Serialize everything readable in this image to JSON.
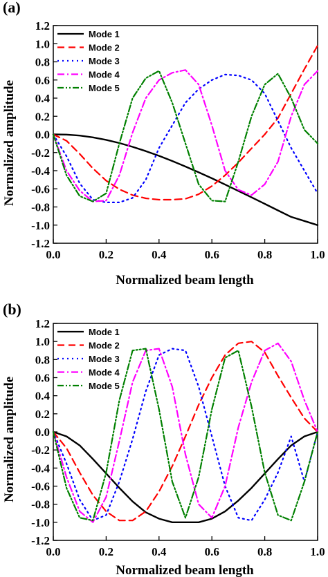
{
  "chart_data": [
    {
      "type": "line",
      "panel_label": "(a)",
      "xlabel": "Normalized beam length",
      "ylabel": "Normalized amplitude",
      "xlim": [
        0.0,
        1.0
      ],
      "ylim": [
        -1.2,
        1.2
      ],
      "x_ticks": [
        "0.0",
        "0.2",
        "0.4",
        "0.6",
        "0.8",
        "1.0"
      ],
      "y_ticks": [
        "-1.2",
        "-1.0",
        "-0.8",
        "-0.6",
        "-0.4",
        "-0.2",
        "0.0",
        "0.2",
        "0.4",
        "0.6",
        "0.8",
        "1.0",
        "1.2"
      ],
      "legend_position": "top-left",
      "grid": false,
      "x": [
        0.0,
        0.05,
        0.1,
        0.15,
        0.2,
        0.25,
        0.3,
        0.35,
        0.4,
        0.45,
        0.5,
        0.55,
        0.6,
        0.65,
        0.7,
        0.75,
        0.8,
        0.85,
        0.9,
        0.95,
        1.0
      ],
      "series": [
        {
          "name": "Mode 1",
          "color": "#000000",
          "dash": "solid",
          "values": [
            0.0,
            -0.002,
            -0.013,
            -0.033,
            -0.06,
            -0.095,
            -0.137,
            -0.184,
            -0.236,
            -0.293,
            -0.354,
            -0.418,
            -0.484,
            -0.553,
            -0.623,
            -0.694,
            -0.766,
            -0.838,
            -0.91,
            -0.955,
            -1.0
          ]
        },
        {
          "name": "Mode 2",
          "color": "#ff0000",
          "dash": "dashed",
          "values": [
            0.0,
            -0.07,
            -0.215,
            -0.375,
            -0.51,
            -0.605,
            -0.67,
            -0.705,
            -0.72,
            -0.72,
            -0.71,
            -0.66,
            -0.57,
            -0.45,
            -0.31,
            -0.155,
            0.0,
            0.18,
            0.45,
            0.72,
            0.98
          ]
        },
        {
          "name": "Mode 3",
          "color": "#0000ff",
          "dash": "dotted",
          "values": [
            0.0,
            -0.24,
            -0.54,
            -0.72,
            -0.75,
            -0.75,
            -0.7,
            -0.5,
            -0.15,
            0.1,
            0.35,
            0.5,
            0.6,
            0.66,
            0.65,
            0.6,
            0.45,
            0.15,
            -0.15,
            -0.4,
            -0.65
          ]
        },
        {
          "name": "Mode 4",
          "color": "#ff00ff",
          "dash": "dashdot",
          "values": [
            0.0,
            -0.4,
            -0.62,
            -0.74,
            -0.73,
            -0.45,
            0.02,
            0.4,
            0.6,
            0.68,
            0.71,
            0.55,
            0.1,
            -0.4,
            -0.61,
            -0.67,
            -0.55,
            -0.3,
            0.2,
            0.55,
            0.7
          ]
        },
        {
          "name": "Mode 5",
          "color": "#008000",
          "dash": "dashdotdot",
          "values": [
            0.0,
            -0.45,
            -0.68,
            -0.74,
            -0.65,
            -0.1,
            0.4,
            0.62,
            0.7,
            0.35,
            -0.1,
            -0.55,
            -0.73,
            -0.74,
            -0.3,
            0.2,
            0.55,
            0.67,
            0.4,
            0.05,
            -0.1
          ]
        }
      ]
    },
    {
      "type": "line",
      "panel_label": "(b)",
      "xlabel": "Normalized beam length",
      "ylabel": "Normalized amplitude",
      "xlim": [
        0.0,
        1.0
      ],
      "ylim": [
        -1.2,
        1.2
      ],
      "x_ticks": [
        "0.0",
        "0.2",
        "0.4",
        "0.6",
        "0.8",
        "1.0"
      ],
      "y_ticks": [
        "-1.2",
        "-1.0",
        "-0.8",
        "-0.6",
        "-0.4",
        "-0.2",
        "0.0",
        "0.2",
        "0.4",
        "0.6",
        "0.8",
        "1.0",
        "1.2"
      ],
      "legend_position": "top-left",
      "grid": false,
      "x": [
        0.0,
        0.05,
        0.1,
        0.15,
        0.2,
        0.25,
        0.3,
        0.35,
        0.4,
        0.45,
        0.5,
        0.55,
        0.6,
        0.65,
        0.7,
        0.75,
        0.8,
        0.85,
        0.9,
        0.95,
        1.0
      ],
      "series": [
        {
          "name": "Mode 1",
          "color": "#000000",
          "dash": "solid",
          "values": [
            0.0,
            -0.05,
            -0.15,
            -0.3,
            -0.46,
            -0.62,
            -0.77,
            -0.89,
            -0.96,
            -1.0,
            -1.0,
            -1.0,
            -0.96,
            -0.88,
            -0.76,
            -0.62,
            -0.46,
            -0.3,
            -0.15,
            -0.05,
            0.0
          ]
        },
        {
          "name": "Mode 2",
          "color": "#ff0000",
          "dash": "dashed",
          "values": [
            0.0,
            -0.18,
            -0.45,
            -0.7,
            -0.88,
            -0.98,
            -0.98,
            -0.88,
            -0.66,
            -0.38,
            -0.05,
            0.3,
            0.6,
            0.85,
            0.98,
            1.0,
            0.88,
            0.62,
            0.38,
            0.15,
            0.0
          ]
        },
        {
          "name": "Mode 3",
          "color": "#0000ff",
          "dash": "dotted",
          "values": [
            0.0,
            -0.35,
            -0.75,
            -0.98,
            -0.92,
            -0.55,
            -0.08,
            0.45,
            0.85,
            0.92,
            0.9,
            0.5,
            -0.05,
            -0.6,
            -0.95,
            -0.98,
            -0.75,
            -0.45,
            -0.05,
            -0.55,
            0.0
          ]
        },
        {
          "name": "Mode 4",
          "color": "#ff00ff",
          "dash": "dashdot",
          "values": [
            0.0,
            -0.5,
            -0.88,
            -1.0,
            -0.72,
            -0.1,
            0.55,
            0.9,
            0.92,
            0.5,
            -0.25,
            -0.8,
            -0.95,
            -0.6,
            0.05,
            0.55,
            0.9,
            0.98,
            0.78,
            0.35,
            0.0
          ]
        },
        {
          "name": "Mode 5",
          "color": "#008000",
          "dash": "dashdotdot",
          "values": [
            0.0,
            -0.62,
            -0.95,
            -0.98,
            -0.45,
            0.35,
            0.9,
            0.92,
            0.25,
            -0.55,
            -0.95,
            -0.5,
            0.25,
            0.82,
            0.9,
            0.28,
            -0.45,
            -0.92,
            -0.98,
            -0.55,
            0.0
          ]
        }
      ]
    }
  ]
}
